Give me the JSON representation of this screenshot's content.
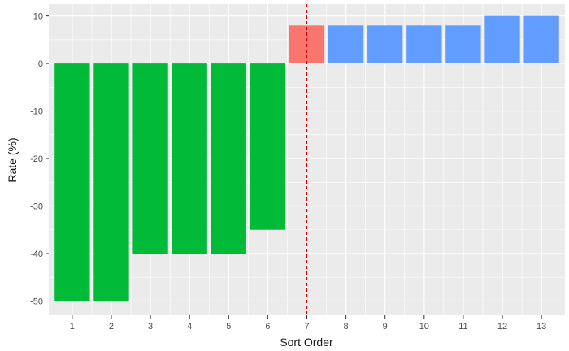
{
  "chart_data": {
    "type": "bar",
    "title": "",
    "xlabel": "Sort Order",
    "ylabel": "Rate (%)",
    "categories": [
      "1",
      "2",
      "3",
      "4",
      "5",
      "6",
      "7",
      "8",
      "9",
      "10",
      "11",
      "12",
      "13"
    ],
    "values": [
      -50,
      -50,
      -40,
      -40,
      -40,
      -35,
      8,
      8,
      8,
      8,
      8,
      10,
      10
    ],
    "bar_groups": [
      "green",
      "green",
      "green",
      "green",
      "green",
      "green",
      "red",
      "blue",
      "blue",
      "blue",
      "blue",
      "blue",
      "blue"
    ],
    "colors": {
      "green": "#00BA38",
      "red": "#F8766D",
      "blue": "#619CFF"
    },
    "ylim": [
      -53,
      12.5
    ],
    "yticks": [
      -50,
      -40,
      -30,
      -20,
      -10,
      0,
      10
    ],
    "ytick_labels": [
      "-50",
      "-40",
      "-30",
      "-20",
      "-10",
      "0",
      "10"
    ],
    "vline": {
      "x": 7,
      "color": "#CC0000",
      "style": "dashed"
    },
    "grid": true,
    "legend": "none",
    "background": "#EBEBEB"
  }
}
